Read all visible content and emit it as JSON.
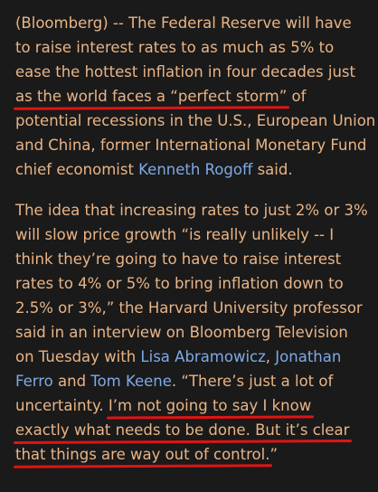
{
  "paragraph1": {
    "lines": [
      "(Bloomberg) -- The Federal Reserve will have",
      "to raise interest rates to as much as 5% to",
      "ease the hottest inflation in four decades just"
    ],
    "line4_highlight": "as the world faces a “perfect storm”",
    "line4_rest": " of",
    "lines_after": [
      "potential recessions in the U.S., European Union",
      "and China, former International Monetary Fund"
    ],
    "line7_prefix": "chief economist ",
    "line7_link": "Kenneth Rogoff",
    "line7_suffix": " said."
  },
  "paragraph2": {
    "lines": [
      "The idea that increasing rates to just 2% or 3%",
      "will slow price growth “is really unlikely -- I",
      "think they’re going to have to raise interest",
      "rates to 4% or 5% to bring inflation down to",
      "2.5% or 3%,” the Harvard University professor",
      "said in an interview on Bloomberg Television"
    ],
    "line7_prefix": "on Tuesday with ",
    "line7_link1": "Lisa Abramowicz",
    "line7_sep": ", ",
    "line7_link2": "Jonathan",
    "line8_link2_cont": "Ferro",
    "line8_mid": " and ",
    "line8_link3": "Tom Keene",
    "line8_suffix": ". “There’s just a lot of",
    "line9_prefix": "uncertainty. ",
    "line9_highlight": "I’m not going to say I know",
    "line10_highlight": "exactly what needs to be done. But it’s clear",
    "line11_highlight": "that things are way out of control.",
    "line11_suffix": "”"
  },
  "colors": {
    "text": "#e9b486",
    "link": "#7fa9e6",
    "underline": "#e01414",
    "background": "#1a1a1a"
  }
}
